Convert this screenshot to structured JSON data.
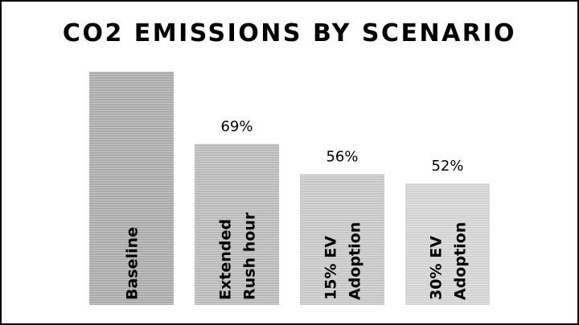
{
  "chart_data": {
    "type": "bar",
    "title": "CO2 EMISSIONS BY SCENARIO",
    "categories": [
      [
        "Baseline"
      ],
      [
        "Extended",
        "Rush hour"
      ],
      [
        "15% EV",
        "Adoption"
      ],
      [
        "30% EV",
        "Adoption"
      ]
    ],
    "values": [
      100,
      69,
      56,
      52
    ],
    "data_labels": [
      "",
      "69%",
      "56%",
      "52%"
    ],
    "ylim": [
      0,
      100
    ],
    "bar_colors": [
      "#a9a9a9",
      "#b8b8b8",
      "#c6c6c6",
      "#d2d2d2"
    ],
    "grid": false,
    "legend": "none"
  }
}
